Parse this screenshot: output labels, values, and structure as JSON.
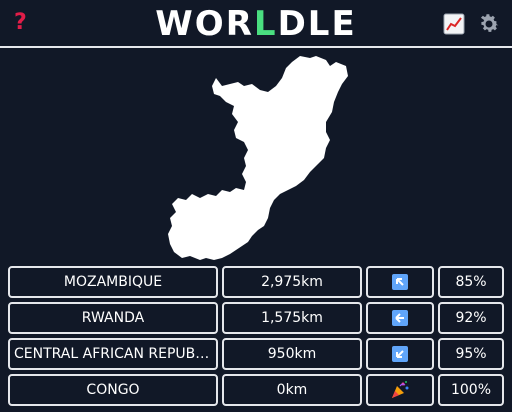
{
  "header": {
    "title_left": "WOR",
    "title_accent": "L",
    "title_right": "DLE",
    "help_glyph": "?",
    "help_icon": "question-mark-icon",
    "stats_icon": "chart-icon",
    "settings_icon": "gear-icon"
  },
  "colors": {
    "background": "#111827",
    "accent": "#4ade80",
    "help": "#e11d48",
    "arrow_bg": "#60a5fa",
    "border": "#e5e7eb"
  },
  "map": {
    "country_shape": "congo-silhouette"
  },
  "guesses": [
    {
      "country": "MOZAMBIQUE",
      "distance": "2,975km",
      "direction": "north-west",
      "direction_icon": "arrow-up-left-icon",
      "proximity": "85%"
    },
    {
      "country": "RWANDA",
      "distance": "1,575km",
      "direction": "west",
      "direction_icon": "arrow-left-icon",
      "proximity": "92%"
    },
    {
      "country": "CENTRAL AFRICAN REPUBLIC",
      "distance": "950km",
      "direction": "south-west",
      "direction_icon": "arrow-down-left-icon",
      "proximity": "95%"
    },
    {
      "country": "CONGO",
      "distance": "0km",
      "direction": "correct",
      "direction_icon": "party-popper-icon",
      "proximity": "100%"
    }
  ]
}
